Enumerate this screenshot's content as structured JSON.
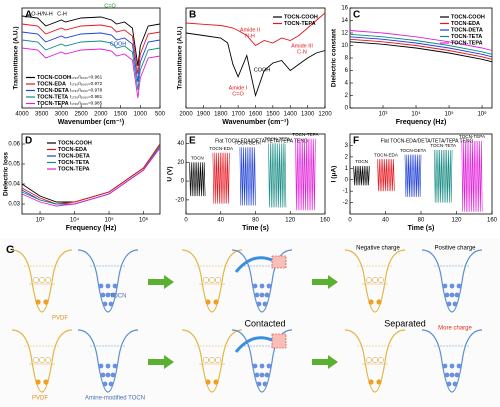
{
  "chart_data": [
    {
      "type": "line",
      "panel": "A",
      "xlabel": "Wavenumber (cm⁻¹)",
      "ylabel": "Transmittance (A.U.)",
      "x": [
        4000,
        3600,
        3400,
        3000,
        2900,
        2500,
        2000,
        1730,
        1600,
        1400,
        1200,
        1060,
        1000,
        800,
        500
      ],
      "xlim": [
        4000,
        500
      ],
      "xticks": [
        4000,
        3500,
        3000,
        2500,
        2000,
        1500,
        1000,
        500
      ],
      "ylim": [
        0,
        100
      ],
      "legend": "lower left",
      "series": [
        {
          "name": "TOCN-COOH",
          "color": "#000000",
          "values": [
            92,
            90,
            82,
            88,
            86,
            90,
            91,
            88,
            84,
            86,
            80,
            42,
            62,
            82,
            84
          ]
        },
        {
          "name": "TOCN-EDA",
          "color": "#e8141c",
          "values": [
            84,
            82,
            74,
            80,
            78,
            82,
            83,
            81,
            76,
            78,
            72,
            34,
            54,
            74,
            76
          ]
        },
        {
          "name": "TOCN-DETA",
          "color": "#1f3fd6",
          "values": [
            76,
            74,
            66,
            72,
            70,
            74,
            75,
            73,
            68,
            70,
            64,
            26,
            46,
            66,
            68
          ]
        },
        {
          "name": "TOCN-TETA",
          "color": "#138a82",
          "values": [
            68,
            66,
            58,
            64,
            62,
            66,
            67,
            65,
            60,
            62,
            56,
            18,
            38,
            58,
            60
          ]
        },
        {
          "name": "TOCN-TEPA",
          "color": "#e020d8",
          "values": [
            60,
            58,
            50,
            56,
            54,
            58,
            59,
            57,
            52,
            54,
            48,
            10,
            30,
            50,
            52
          ]
        }
      ],
      "ratio_labels": [
        "I₁₇₃₀/I₁₀₆₀=0.961",
        "I₁₇₃₀/I₁₀₆₀=0.972",
        "I₁₇₃₀/I₁₀₆₀=0.978",
        "I₁₇₃₀/I₁₀₆₀=0.981",
        "I₁₇₃₀/I₁₀₆₀=0.985"
      ],
      "annotations": [
        "O-H/N-H",
        "C-H",
        "C=O",
        "COOH"
      ]
    },
    {
      "type": "line",
      "panel": "B",
      "xlabel": "Wavenumber (cm⁻¹)",
      "ylabel": "Transmittance (A.U.)",
      "x": [
        2000,
        1900,
        1800,
        1760,
        1730,
        1700,
        1650,
        1600,
        1550,
        1500,
        1450,
        1400,
        1350,
        1300,
        1250,
        1200
      ],
      "xlim": [
        2000,
        1200
      ],
      "xticks": [
        2000,
        1900,
        1800,
        1700,
        1600,
        1500,
        1400,
        1300,
        1200
      ],
      "ylim": [
        20,
        100
      ],
      "legend": "upper right",
      "series": [
        {
          "name": "TOCN-COOH",
          "color": "#000000",
          "values": [
            80,
            78,
            76,
            72,
            55,
            45,
            62,
            30,
            50,
            56,
            58,
            50,
            55,
            60,
            64,
            66
          ]
        },
        {
          "name": "TOCN-TEPA",
          "color": "#e8141c",
          "values": [
            88,
            87,
            86,
            85,
            84,
            82,
            78,
            70,
            74,
            72,
            76,
            74,
            78,
            84,
            90,
            96
          ]
        }
      ],
      "annotations": [
        "COOH",
        "Amide I",
        "C=O",
        "Amide II",
        "N-H",
        "Amide III",
        "C-N"
      ]
    },
    {
      "type": "line",
      "panel": "C",
      "xlabel": "Frequency (Hz)",
      "ylabel": "Dielectric constant",
      "log_x": true,
      "x": [
        100,
        1000,
        10000,
        100000,
        1000000,
        2000000
      ],
      "xlim": [
        100,
        2000000
      ],
      "xticks": [
        {
          "value": 1000,
          "label": "10³"
        },
        {
          "value": 10000,
          "label": "10⁴"
        },
        {
          "value": 100000,
          "label": "10⁵"
        },
        {
          "value": 1000000,
          "label": "10⁶"
        }
      ],
      "ylim": [
        0,
        16
      ],
      "yticks": [
        0,
        2,
        4,
        6,
        8,
        10,
        12,
        14,
        16
      ],
      "legend": "upper right",
      "series": [
        {
          "name": "TOCN-COOH",
          "color": "#000000",
          "values": [
            10.6,
            10.2,
            9.6,
            8.8,
            7.8,
            7.4
          ]
        },
        {
          "name": "TOCN-EDA",
          "color": "#e8141c",
          "values": [
            11.0,
            10.6,
            10.0,
            9.2,
            8.2,
            7.8
          ]
        },
        {
          "name": "TOCN-DETA",
          "color": "#1f3fd6",
          "values": [
            11.4,
            11.0,
            10.4,
            9.6,
            8.6,
            8.2
          ]
        },
        {
          "name": "TOCN-TETA",
          "color": "#138a82",
          "values": [
            11.8,
            11.4,
            10.8,
            10.0,
            9.0,
            8.6
          ]
        },
        {
          "name": "TOCN-TEPA",
          "color": "#e020d8",
          "values": [
            12.4,
            12.0,
            11.4,
            10.6,
            9.6,
            9.2
          ]
        }
      ]
    },
    {
      "type": "line",
      "panel": "D",
      "xlabel": "Frequency (Hz)",
      "ylabel": "Dielectric loss",
      "log_x": true,
      "x": [
        300,
        1000,
        3000,
        10000,
        100000,
        1000000,
        3000000
      ],
      "xlim": [
        300,
        3000000
      ],
      "xticks": [
        {
          "value": 1000,
          "label": "10³"
        },
        {
          "value": 10000,
          "label": "10⁴"
        },
        {
          "value": 100000,
          "label": "10⁵"
        },
        {
          "value": 1000000,
          "label": "10⁶"
        }
      ],
      "ylim": [
        0.025,
        0.065
      ],
      "yticks": [
        0.03,
        0.04,
        0.05,
        0.06
      ],
      "legend": "upper center",
      "series": [
        {
          "name": "TOCN-COOH",
          "color": "#000000",
          "values": [
            0.04,
            0.034,
            0.031,
            0.031,
            0.036,
            0.048,
            0.06
          ]
        },
        {
          "name": "TOCN-EDA",
          "color": "#e8141c",
          "values": [
            0.038,
            0.033,
            0.03,
            0.031,
            0.036,
            0.048,
            0.06
          ]
        },
        {
          "name": "TOCN-DETA",
          "color": "#1f3fd6",
          "values": [
            0.037,
            0.032,
            0.03,
            0.03,
            0.035,
            0.047,
            0.059
          ]
        },
        {
          "name": "TOCN-TETA",
          "color": "#138a82",
          "values": [
            0.036,
            0.032,
            0.03,
            0.03,
            0.035,
            0.047,
            0.059
          ]
        },
        {
          "name": "TOCN-TEPA",
          "color": "#e020d8",
          "values": [
            0.035,
            0.031,
            0.029,
            0.03,
            0.035,
            0.047,
            0.058
          ]
        }
      ]
    },
    {
      "type": "signal",
      "panel": "E",
      "title": "Flat TOCN-EDA/DETA/TETA/TEPA TENG",
      "xlabel": "Time (s)",
      "ylabel": "U (V)",
      "xlim": [
        0,
        160
      ],
      "xticks": [
        0,
        40,
        80,
        120,
        160
      ],
      "ylim": [
        -35,
        50
      ],
      "yticks": [
        -20,
        0,
        20,
        40
      ],
      "series": [
        {
          "name": "TOCN",
          "color": "#000000",
          "x": [
            4,
            22
          ],
          "values": [
            -16,
            20
          ]
        },
        {
          "name": "TOCN-EDA",
          "color": "#e8141c",
          "x": [
            31,
            50
          ],
          "values": [
            -24,
            30
          ]
        },
        {
          "name": "TOCN-DETA",
          "color": "#1f3fd6",
          "x": [
            62,
            80
          ],
          "values": [
            -26,
            36
          ]
        },
        {
          "name": "TOCN-TETA",
          "color": "#138a82",
          "x": [
            95,
            115
          ],
          "values": [
            -28,
            40
          ]
        },
        {
          "name": "TOCN-TEPA",
          "color": "#e020d8",
          "x": [
            126,
            149
          ],
          "values": [
            -31,
            45
          ]
        }
      ]
    },
    {
      "type": "signal",
      "panel": "F",
      "title": "Flat TOCN-EDA/DETA/TETA/TEPA TENG",
      "xlabel": "Time (s)",
      "ylabel": "I (μA)",
      "xlim": [
        0,
        160
      ],
      "xticks": [
        0,
        40,
        80,
        120,
        160
      ],
      "ylim": [
        -3,
        4
      ],
      "yticks": [
        -2,
        -1,
        0,
        1,
        2,
        3
      ],
      "series": [
        {
          "name": "TOCN",
          "color": "#000000",
          "x": [
            4,
            22
          ],
          "values": [
            -0.5,
            1.2
          ]
        },
        {
          "name": "TOCN-EDA",
          "color": "#e8141c",
          "x": [
            31,
            50
          ],
          "values": [
            -1.0,
            1.8
          ]
        },
        {
          "name": "TOCN-DETA",
          "color": "#1f3fd6",
          "x": [
            62,
            80
          ],
          "values": [
            -1.5,
            2.2
          ]
        },
        {
          "name": "TOCN-TETA",
          "color": "#138a82",
          "x": [
            95,
            115
          ],
          "values": [
            -2.0,
            2.6
          ]
        },
        {
          "name": "TOCN-TEPA",
          "color": "#e020d8",
          "x": [
            126,
            149
          ],
          "values": [
            -2.8,
            3.4
          ]
        }
      ]
    }
  ],
  "diagram": {
    "panel": "G",
    "top": {
      "left_material": "PVDF",
      "right_material": "TOCN",
      "negative": "Negative charge",
      "positive": "Positive charge"
    },
    "contacted": "Contacted",
    "separated": "Separated",
    "bottom": {
      "left_material": "PVDF",
      "right_material": "Amine-modified TOCN",
      "more": "More charge"
    }
  }
}
